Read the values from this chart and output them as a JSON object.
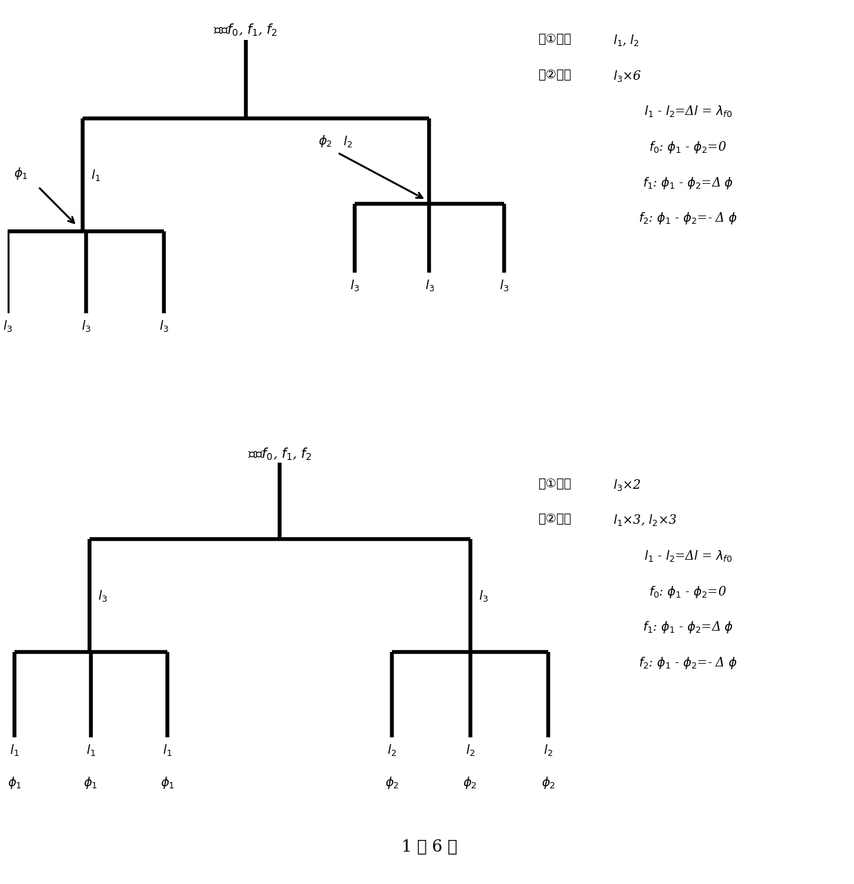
{
  "bg_color": "#ffffff",
  "line_color": "#000000",
  "line_width": 4.0,
  "fig_width": 12.4,
  "fig_height": 12.84,
  "top_title": "输入$f_0$, $f_1$, $f_2$",
  "bottom_title": "输入$f_0$, $f_1$, $f_2$",
  "footer": "1 分 6 路",
  "top_legend_lines": [
    [
      "第①级：",
      "$l_1$, $l_2$"
    ],
    [
      "第②级：",
      "$l_3$×6"
    ],
    [
      "$l_1$ - $l_2$=Δ$l$ = $\\lambda_{f0}$",
      ""
    ],
    [
      "$f_0$: $\\phi_1$ - $\\phi_2$=0",
      ""
    ],
    [
      "$f_1$: $\\phi_1$ - $\\phi_2$=Δ $\\phi$",
      ""
    ],
    [
      "$f_2$: $\\phi_1$ - $\\phi_2$=- Δ $\\phi$",
      ""
    ]
  ],
  "bottom_legend_lines": [
    [
      "第①级：",
      "$l_3$×2"
    ],
    [
      "第②级：",
      "$l_1$×3, $l_2$×3"
    ],
    [
      "$l_1$ - $l_2$=Δ$l$ = $\\lambda_{f0}$",
      ""
    ],
    [
      "$f_0$: $\\phi_1$ - $\\phi_2$=0",
      ""
    ],
    [
      "$f_1$: $\\phi_1$ - $\\phi_2$=Δ $\\phi$",
      ""
    ],
    [
      "$f_2$: $\\phi_1$ - $\\phi_2$=- Δ $\\phi$",
      ""
    ]
  ]
}
